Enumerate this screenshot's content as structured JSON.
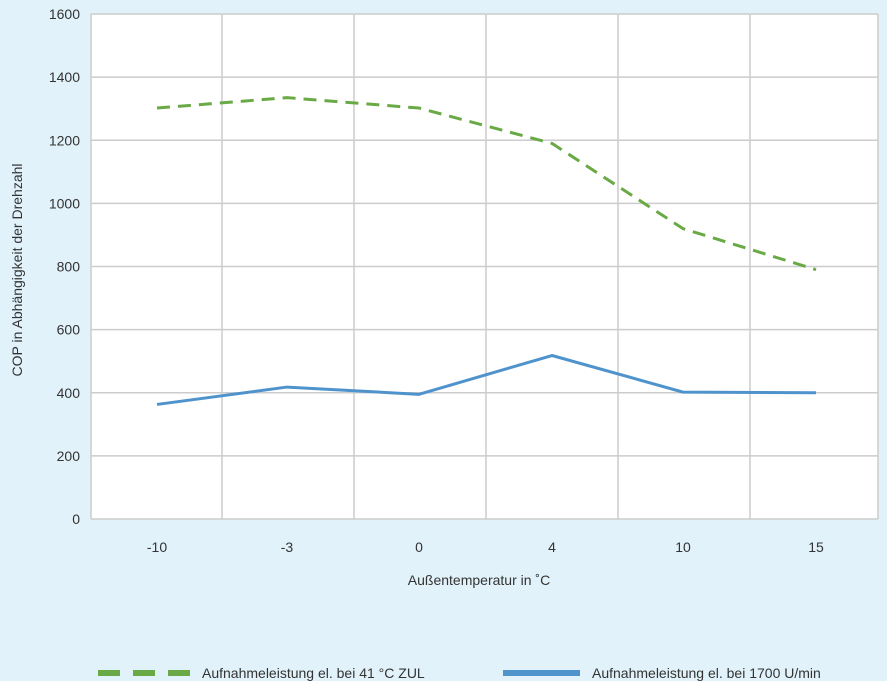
{
  "chart_data": {
    "type": "line",
    "title": "",
    "xlabel": "Außentemperatur in ˚C",
    "ylabel": "COP in Abhängigkeit der Drehzahl",
    "categories": [
      "-10",
      "-3",
      "0",
      "4",
      "10",
      "15"
    ],
    "ylim": [
      0,
      1600
    ],
    "yticks": [
      "0",
      "200",
      "400",
      "600",
      "800",
      "1000",
      "1200",
      "1400",
      "1600"
    ],
    "grid": true,
    "legend_position": "bottom",
    "series": [
      {
        "name": "Aufnahmeleistung el. bei 41 °C ZUL",
        "values": [
          1302,
          1335,
          1302,
          1190,
          920,
          790
        ],
        "color": "#6aaa46",
        "style": "dashed"
      },
      {
        "name": "Aufnahmeleistung el. bei 1700 U/min",
        "values": [
          363,
          418,
          395,
          518,
          402,
          400
        ],
        "color": "#4f93cc",
        "style": "solid"
      }
    ]
  }
}
